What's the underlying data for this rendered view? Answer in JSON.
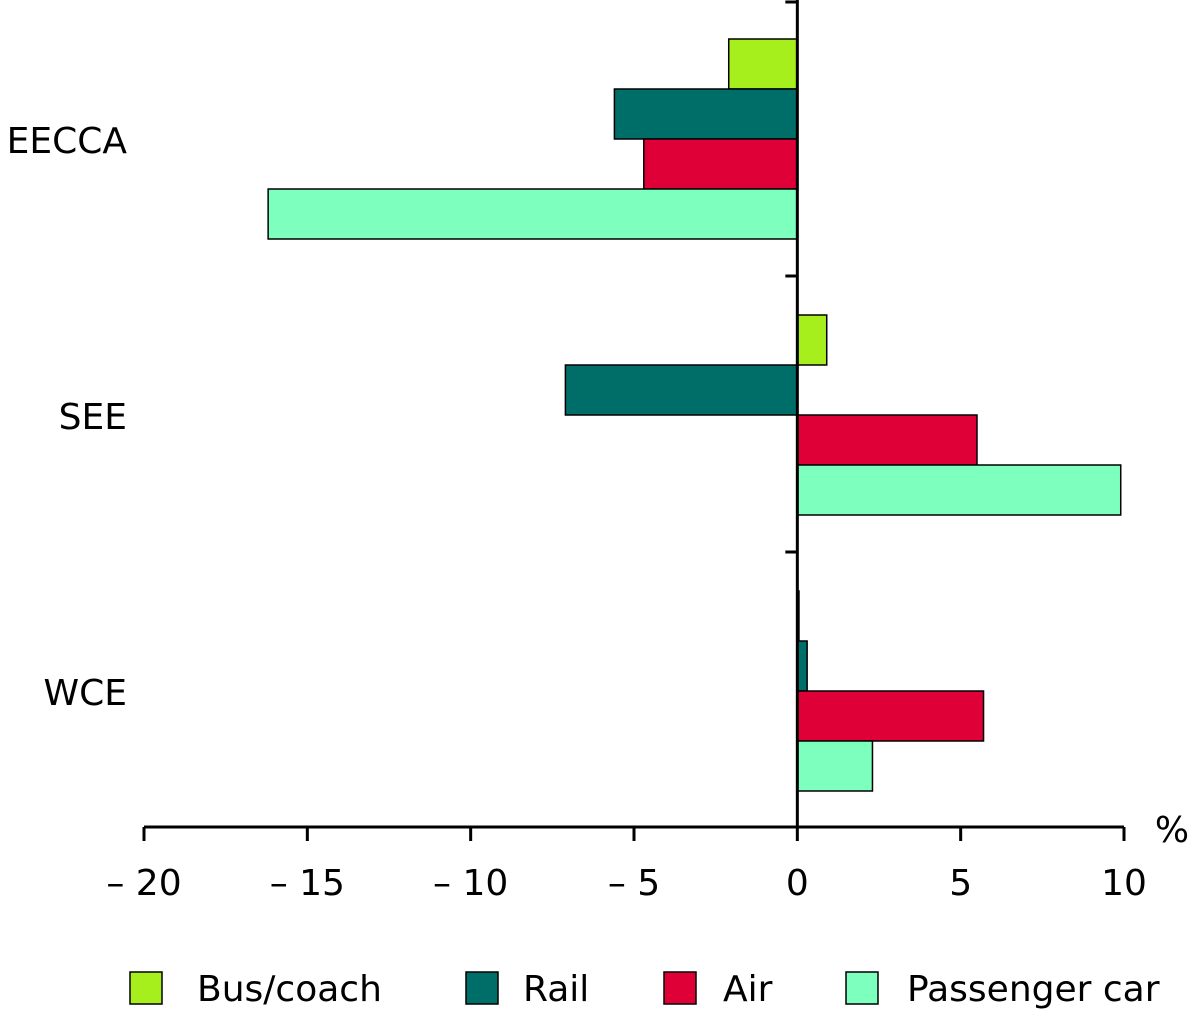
{
  "chart_data": {
    "type": "bar",
    "orientation": "horizontal",
    "categories": [
      "EECCA",
      "SEE",
      "WCE"
    ],
    "series": [
      {
        "name": "Bus/coach",
        "color": "#a6ee1c",
        "values": [
          -2.1,
          0.9,
          0.05
        ]
      },
      {
        "name": "Rail",
        "color": "#006e68",
        "values": [
          -5.6,
          -7.1,
          0.3
        ]
      },
      {
        "name": "Air",
        "color": "#de0037",
        "values": [
          -4.7,
          5.5,
          5.7
        ]
      },
      {
        "name": "Passenger car",
        "color": "#7dffbe",
        "values": [
          -16.2,
          9.9,
          2.3
        ]
      }
    ],
    "x_unit": "%",
    "xlim": [
      -20,
      10
    ],
    "xticks": [
      -20,
      -15,
      -10,
      -5,
      0,
      5,
      10
    ],
    "xtick_labels": [
      "– 20",
      "– 15",
      "– 10",
      "– 5",
      "0",
      "5",
      "10"
    ],
    "grid": false,
    "legend_position": "bottom"
  }
}
